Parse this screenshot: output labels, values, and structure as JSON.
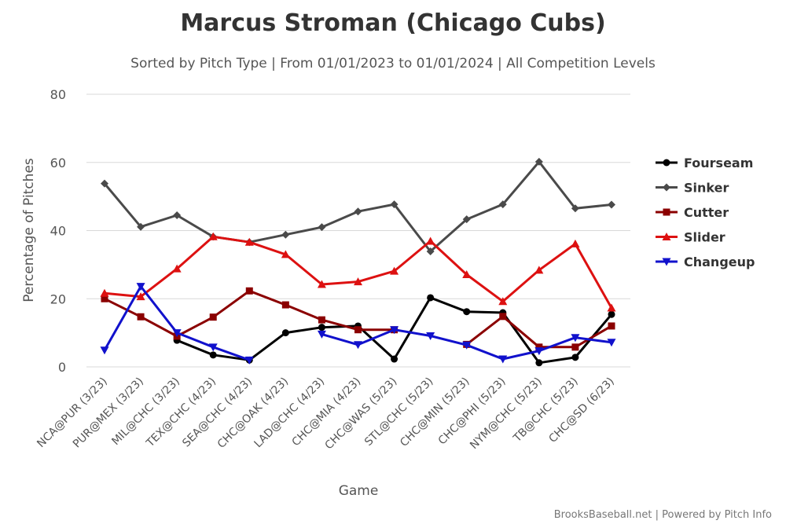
{
  "chart_data": {
    "type": "line",
    "title": "Marcus Stroman (Chicago Cubs)",
    "subtitle": "Sorted by Pitch Type | From 01/01/2023 to 01/01/2024 | All Competition Levels",
    "xlabel": "Game",
    "ylabel": "Percentage of Pitches",
    "ylim": [
      0,
      80
    ],
    "yticks": [
      "0",
      "20",
      "40",
      "60",
      "80"
    ],
    "grid": true,
    "legend_position": "right",
    "credit": "BrooksBaseball.net | Powered by Pitch Info",
    "categories": [
      "NCA@PUR (3/23)",
      "PUR@MEX (3/23)",
      "MIL@CHC (3/23)",
      "TEX@CHC (4/23)",
      "SEA@CHC (4/23)",
      "CHC@OAK (4/23)",
      "LAD@CHC (4/23)",
      "CHC@MIA (4/23)",
      "CHC@WAS (5/23)",
      "STL@CHC (5/23)",
      "CHC@MIN (5/23)",
      "CHC@PHI (5/23)",
      "NYM@CHC (5/23)",
      "TB@CHC (5/23)",
      "CHC@SD (6/23)"
    ],
    "series": [
      {
        "name": "Fourseam",
        "color": "#000000",
        "marker": "circle",
        "values": [
          null,
          null,
          7.8,
          3.5,
          2,
          10,
          11.6,
          12,
          2.3,
          20.3,
          16.2,
          15.9,
          1.2,
          2.8,
          15.4
        ]
      },
      {
        "name": "Sinker",
        "color": "#4a4a4a",
        "marker": "diamond",
        "values": [
          53.8,
          41.1,
          44.5,
          38.2,
          36.6,
          38.8,
          41,
          45.6,
          47.7,
          33.9,
          43.3,
          47.7,
          60.2,
          46.5,
          47.6
        ]
      },
      {
        "name": "Cutter",
        "color": "#8b0000",
        "marker": "square",
        "values": [
          20,
          14.7,
          9,
          14.6,
          22.3,
          18.2,
          13.8,
          10.9,
          10.9,
          null,
          6.6,
          14.8,
          5.8,
          5.8,
          12
        ]
      },
      {
        "name": "Slider",
        "color": "#dd1111",
        "marker": "triangle-up",
        "values": [
          21.6,
          20.6,
          28.8,
          38.2,
          36.6,
          33,
          24.2,
          25,
          28.1,
          36.9,
          27.1,
          19.2,
          28.4,
          36.1,
          17.3
        ]
      },
      {
        "name": "Changeup",
        "color": "#1111cc",
        "marker": "triangle-down",
        "values": [
          4.9,
          23.6,
          10,
          5.8,
          2,
          null,
          9.6,
          6.5,
          10.9,
          9.1,
          6.4,
          2.3,
          4.7,
          8.6,
          7.2
        ]
      }
    ]
  }
}
